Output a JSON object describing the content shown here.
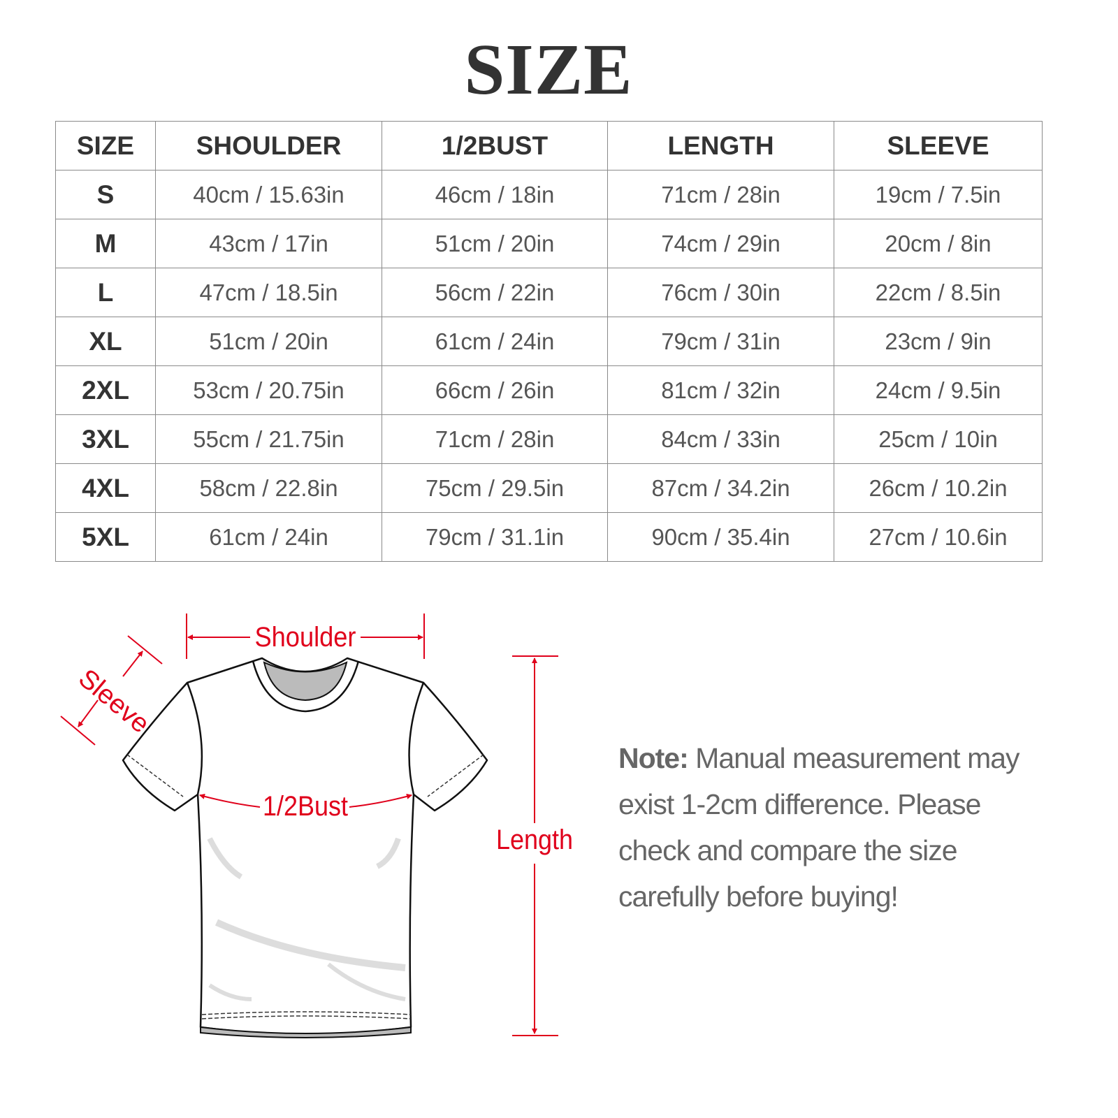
{
  "title": "SIZE",
  "table": {
    "headers": [
      "SIZE",
      "SHOULDER",
      "1/2BUST",
      "LENGTH",
      "SLEEVE"
    ],
    "rows": [
      [
        "S",
        "40cm / 15.63in",
        "46cm / 18in",
        "71cm / 28in",
        "19cm / 7.5in"
      ],
      [
        "M",
        "43cm / 17in",
        "51cm / 20in",
        "74cm / 29in",
        "20cm / 8in"
      ],
      [
        "L",
        "47cm / 18.5in",
        "56cm / 22in",
        "76cm / 30in",
        "22cm / 8.5in"
      ],
      [
        "XL",
        "51cm / 20in",
        "61cm / 24in",
        "79cm / 31in",
        "23cm / 9in"
      ],
      [
        "2XL",
        "53cm / 20.75in",
        "66cm / 26in",
        "81cm / 32in",
        "24cm / 9.5in"
      ],
      [
        "3XL",
        "55cm / 21.75in",
        "71cm / 28in",
        "84cm / 33in",
        "25cm / 10in"
      ],
      [
        "4XL",
        "58cm / 22.8in",
        "75cm / 29.5in",
        "87cm / 34.2in",
        "26cm / 10.2in"
      ],
      [
        "5XL",
        "61cm / 24in",
        "79cm / 31.1in",
        "90cm / 35.4in",
        "27cm / 10.6in"
      ]
    ]
  },
  "diagram": {
    "labels": {
      "shoulder": "Shoulder",
      "sleeve": "Sleeve",
      "bust": "1/2Bust",
      "length": "Length"
    },
    "accent_color": "#e0001b"
  },
  "note": {
    "label": "Note:",
    "text": "Manual measurement may exist 1-2cm difference. Please check and compare the size carefully before buying!"
  }
}
